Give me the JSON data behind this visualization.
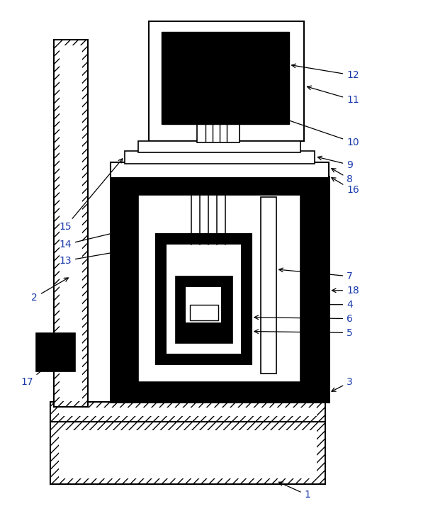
{
  "bg_color": "#ffffff",
  "lc": "#000000",
  "fig_w": 6.04,
  "fig_h": 7.28,
  "label_color": "#1a3aaa"
}
